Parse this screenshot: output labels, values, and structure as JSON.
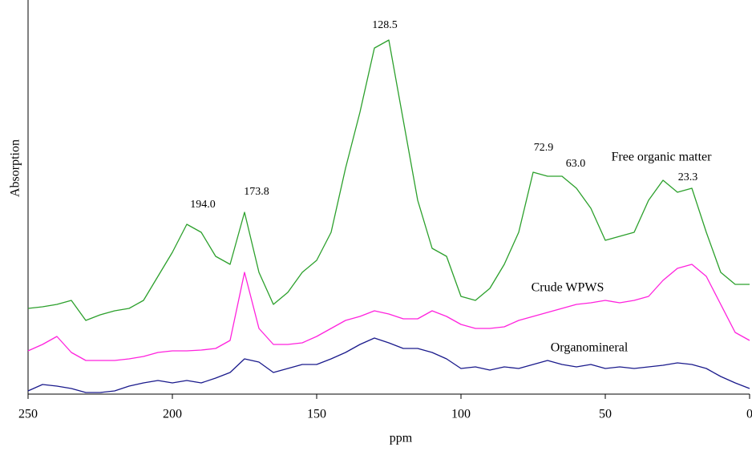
{
  "chart_data": {
    "type": "line",
    "xlabel": "ppm",
    "ylabel": "Absorption",
    "x": [
      250,
      245,
      240,
      235,
      230,
      225,
      220,
      215,
      210,
      205,
      200,
      195,
      190,
      185,
      180,
      175,
      170,
      165,
      160,
      155,
      150,
      145,
      140,
      135,
      130,
      125,
      120,
      115,
      110,
      105,
      100,
      95,
      90,
      85,
      80,
      75,
      70,
      65,
      60,
      55,
      50,
      45,
      40,
      35,
      30,
      25,
      20,
      15,
      10,
      5,
      0
    ],
    "series": [
      {
        "name": "Free organic matter",
        "color": "#2ca02c",
        "values": [
          21.4,
          21.8,
          22.4,
          23.4,
          18.4,
          19.8,
          20.8,
          21.4,
          23.4,
          29.4,
          35.4,
          42.4,
          40.4,
          34.4,
          32.4,
          45.4,
          30.4,
          22.4,
          25.4,
          30.4,
          33.4,
          40.4,
          56.4,
          70.4,
          86.4,
          88.4,
          68.4,
          48.4,
          36.4,
          34.4,
          24.4,
          23.4,
          26.4,
          32.4,
          40.4,
          55.4,
          54.4,
          54.4,
          51.4,
          46.4,
          38.4,
          39.4,
          40.4,
          48.4,
          53.4,
          50.4,
          51.4,
          40.4,
          30.4,
          27.4,
          27.4
        ]
      },
      {
        "name": "Crude WPWS",
        "color": "#ff22dd",
        "values": [
          10.8,
          12.4,
          14.4,
          10.4,
          8.4,
          8.4,
          8.4,
          8.8,
          9.4,
          10.4,
          10.8,
          10.8,
          11.0,
          11.4,
          13.4,
          30.4,
          16.4,
          12.4,
          12.4,
          12.8,
          14.4,
          16.4,
          18.4,
          19.4,
          20.8,
          20.0,
          18.8,
          18.8,
          20.8,
          19.4,
          17.4,
          16.4,
          16.4,
          16.8,
          18.4,
          19.4,
          20.4,
          21.4,
          22.4,
          22.8,
          23.4,
          22.8,
          23.4,
          24.4,
          28.4,
          31.4,
          32.4,
          29.4,
          22.4,
          15.4,
          13.4
        ]
      },
      {
        "name": "Organomineral",
        "color": "#1a1a8c",
        "values": [
          0.8,
          2.4,
          2.0,
          1.4,
          0.4,
          0.4,
          0.8,
          2.0,
          2.8,
          3.4,
          2.8,
          3.4,
          2.8,
          4.0,
          5.4,
          8.8,
          8.0,
          5.4,
          6.4,
          7.4,
          7.4,
          8.8,
          10.4,
          12.4,
          14.0,
          12.8,
          11.4,
          11.4,
          10.4,
          8.8,
          6.4,
          6.8,
          6.0,
          6.8,
          6.4,
          7.4,
          8.4,
          7.4,
          6.8,
          7.4,
          6.4,
          6.8,
          6.4,
          6.8,
          7.2,
          7.8,
          7.4,
          6.4,
          4.4,
          2.8,
          1.4
        ]
      }
    ],
    "annotations": [
      "194.0",
      "173.8",
      "128.5",
      "72.9",
      "63.0",
      "23.3"
    ],
    "xlim": [
      250,
      0
    ],
    "xticks": [
      250,
      200,
      150,
      100,
      50,
      0
    ],
    "ylim": [
      0,
      100
    ]
  }
}
